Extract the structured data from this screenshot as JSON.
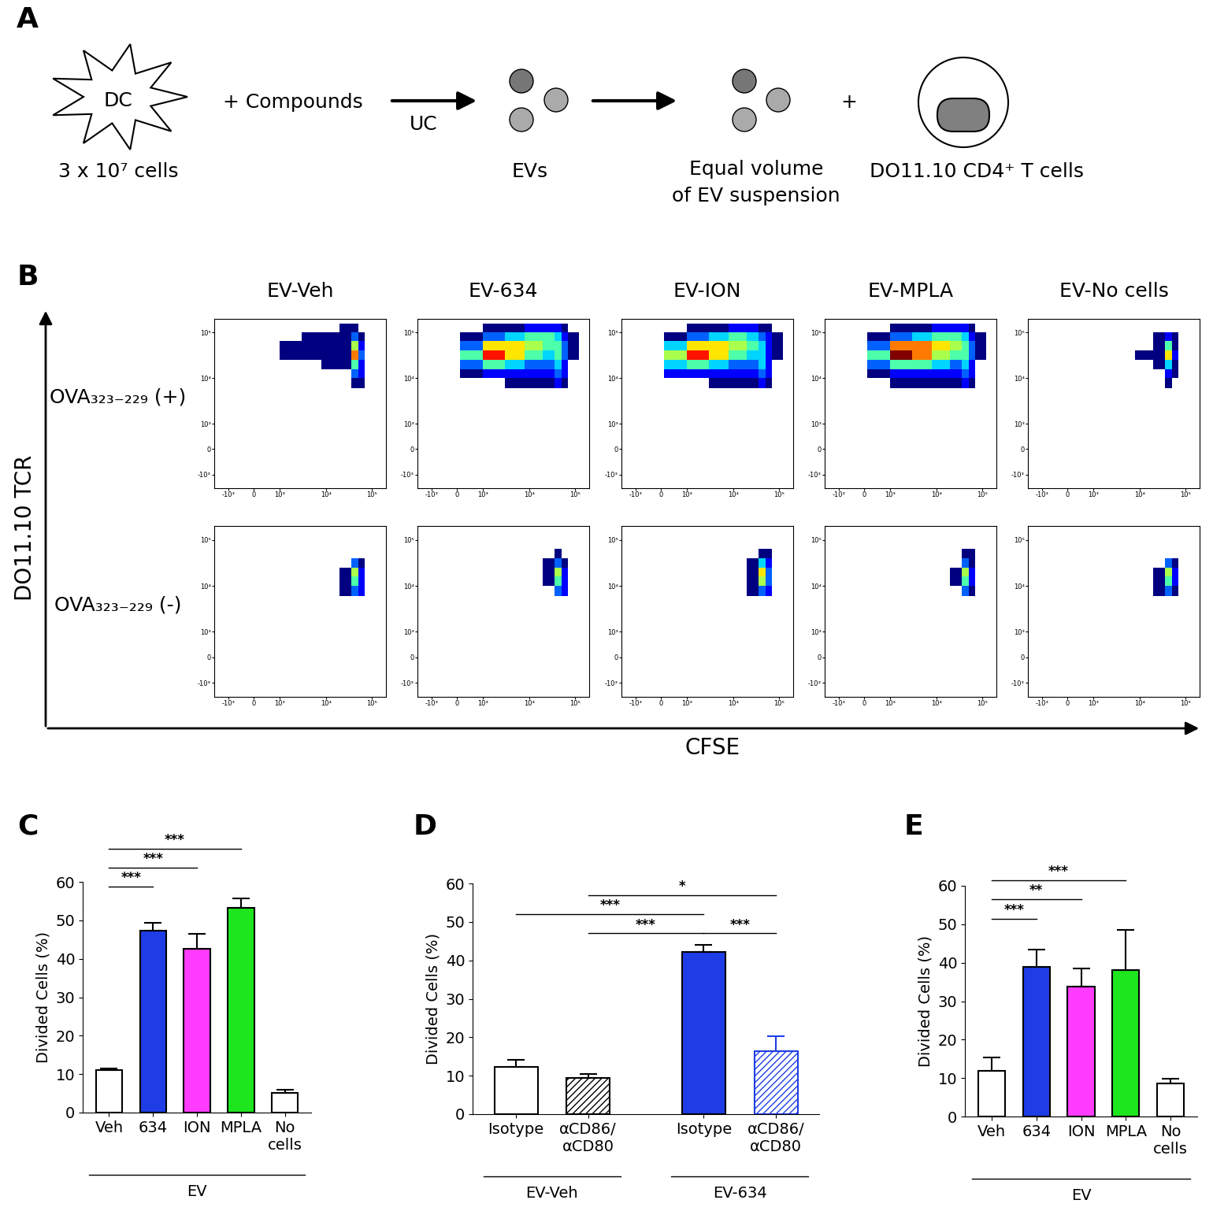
{
  "panel_labels": [
    "A",
    "B",
    "C",
    "D",
    "E"
  ],
  "diagram": {
    "cell": "DC",
    "cell_count": "3 x 10⁷ cells",
    "treatment": "+ Compounds",
    "step": "UC",
    "product": "EVs",
    "suspension": "Equal volume\nof EV suspension",
    "plus": "+",
    "target": "DO11.10 CD4⁺ T cells"
  },
  "flow": {
    "x_label": "CFSE",
    "y_label": "DO11.10 TCR",
    "columns": [
      "EV-Veh",
      "EV-634",
      "EV-ION",
      "EV-MPLA",
      "EV-No cells"
    ],
    "rows": [
      "OVA₃₂₃₋₂₂₉ (+)",
      "OVA₃₂₃₋₂₂₉ (-)"
    ],
    "xlim": [
      -2000,
      200000
    ],
    "ylim": [
      -2000,
      200000
    ],
    "xticks": [
      {
        "value": -1000,
        "label": "-10³"
      },
      0,
      {
        "value": 1000,
        "label": "10³"
      },
      {
        "value": 10000,
        "label": "10⁴"
      },
      {
        "value": 100000,
        "label": "10⁵"
      }
    ],
    "yticks": [
      {
        "value": -1000,
        "label": "-10³"
      },
      0,
      {
        "value": 1000,
        "label": "10³"
      },
      {
        "value": 10000,
        "label": "10⁴"
      },
      {
        "value": 100000,
        "label": "10⁵"
      }
    ],
    "x_edges": [
      100,
      1000,
      3000,
      8000,
      20000,
      35000,
      50000,
      70000,
      120000
    ],
    "y_edges": [
      6000,
      10000,
      16000,
      25000,
      40000,
      65000,
      100000,
      160000
    ],
    "cells": [
      [
        [
          [
            0,
            0,
            0,
            0,
            0,
            1,
            1,
            0
          ],
          [
            0,
            0,
            0,
            0,
            0,
            3,
            2,
            0
          ],
          [
            0,
            0,
            0,
            1,
            1,
            5,
            2,
            0
          ],
          [
            0,
            1,
            1,
            1,
            1,
            8,
            3,
            0
          ],
          [
            0,
            1,
            1,
            1,
            1,
            6,
            2,
            0
          ],
          [
            0,
            0,
            1,
            1,
            1,
            3,
            1,
            0
          ],
          [
            0,
            0,
            0,
            0,
            1,
            1,
            0,
            0
          ]
        ],
        [
          [
            0,
            0,
            1,
            1,
            1,
            2,
            1,
            0
          ],
          [
            1,
            2,
            2,
            2,
            2,
            3,
            2,
            0
          ],
          [
            3,
            5,
            4,
            3,
            3,
            4,
            2,
            0
          ],
          [
            5,
            9,
            7,
            5,
            4,
            5,
            3,
            1
          ],
          [
            3,
            7,
            7,
            6,
            5,
            5,
            3,
            1
          ],
          [
            1,
            3,
            4,
            5,
            5,
            4,
            2,
            1
          ],
          [
            0,
            1,
            1,
            2,
            2,
            2,
            1,
            0
          ]
        ],
        [
          [
            0,
            0,
            1,
            1,
            1,
            2,
            1,
            0
          ],
          [
            2,
            2,
            2,
            2,
            2,
            3,
            2,
            0
          ],
          [
            4,
            5,
            4,
            3,
            3,
            4,
            2,
            0
          ],
          [
            6,
            9,
            7,
            5,
            4,
            4,
            2,
            1
          ],
          [
            4,
            7,
            7,
            6,
            5,
            4,
            2,
            1
          ],
          [
            1,
            3,
            4,
            5,
            4,
            3,
            2,
            1
          ],
          [
            0,
            1,
            1,
            2,
            2,
            1,
            1,
            0
          ]
        ],
        [
          [
            0,
            1,
            1,
            1,
            1,
            2,
            1,
            0
          ],
          [
            1,
            2,
            2,
            2,
            2,
            3,
            2,
            0
          ],
          [
            3,
            5,
            5,
            4,
            3,
            4,
            2,
            0
          ],
          [
            5,
            10,
            8,
            6,
            5,
            5,
            3,
            1
          ],
          [
            3,
            8,
            8,
            7,
            6,
            5,
            3,
            1
          ],
          [
            1,
            3,
            4,
            5,
            5,
            4,
            2,
            1
          ],
          [
            0,
            1,
            1,
            2,
            2,
            2,
            1,
            0
          ]
        ],
        [
          [
            0,
            0,
            0,
            0,
            0,
            1,
            0,
            0
          ],
          [
            0,
            0,
            0,
            0,
            0,
            2,
            1,
            0
          ],
          [
            0,
            0,
            0,
            0,
            1,
            4,
            1,
            0
          ],
          [
            0,
            0,
            0,
            1,
            1,
            7,
            2,
            0
          ],
          [
            0,
            0,
            0,
            0,
            1,
            5,
            1,
            0
          ],
          [
            0,
            0,
            0,
            0,
            1,
            2,
            1,
            0
          ],
          [
            0,
            0,
            0,
            0,
            0,
            0,
            0,
            0
          ]
        ]
      ],
      [
        [
          [
            0,
            0,
            0,
            0,
            1,
            3,
            2,
            0
          ],
          [
            0,
            0,
            0,
            0,
            1,
            5,
            2,
            0
          ],
          [
            0,
            0,
            0,
            0,
            1,
            6,
            2,
            0
          ],
          [
            0,
            0,
            0,
            0,
            0,
            3,
            1,
            0
          ],
          [
            0,
            0,
            0,
            0,
            0,
            0,
            0,
            0
          ],
          [
            0,
            0,
            0,
            0,
            0,
            0,
            0,
            0
          ],
          [
            0,
            0,
            0,
            0,
            0,
            0,
            0,
            0
          ]
        ],
        [
          [
            0,
            0,
            0,
            0,
            0,
            3,
            2,
            0
          ],
          [
            0,
            0,
            0,
            0,
            1,
            5,
            2,
            0
          ],
          [
            0,
            0,
            0,
            0,
            1,
            6,
            2,
            0
          ],
          [
            0,
            0,
            0,
            0,
            1,
            3,
            1,
            0
          ],
          [
            0,
            0,
            0,
            0,
            0,
            1,
            0,
            0
          ],
          [
            0,
            0,
            0,
            0,
            0,
            0,
            0,
            0
          ],
          [
            0,
            0,
            0,
            0,
            0,
            0,
            0,
            0
          ]
        ],
        [
          [
            0,
            0,
            0,
            0,
            1,
            3,
            2,
            0
          ],
          [
            0,
            0,
            0,
            0,
            1,
            6,
            3,
            0
          ],
          [
            0,
            0,
            0,
            0,
            1,
            7,
            3,
            0
          ],
          [
            0,
            0,
            0,
            0,
            1,
            4,
            2,
            0
          ],
          [
            0,
            0,
            0,
            0,
            0,
            1,
            1,
            0
          ],
          [
            0,
            0,
            0,
            0,
            0,
            0,
            0,
            0
          ],
          [
            0,
            0,
            0,
            0,
            0,
            0,
            0,
            0
          ]
        ],
        [
          [
            0,
            0,
            0,
            0,
            0,
            3,
            1,
            0
          ],
          [
            0,
            0,
            0,
            0,
            1,
            5,
            2,
            0
          ],
          [
            0,
            0,
            0,
            0,
            1,
            6,
            2,
            0
          ],
          [
            0,
            0,
            0,
            0,
            0,
            3,
            1,
            0
          ],
          [
            0,
            0,
            0,
            0,
            0,
            1,
            1,
            0
          ],
          [
            0,
            0,
            0,
            0,
            0,
            0,
            0,
            0
          ],
          [
            0,
            0,
            0,
            0,
            0,
            0,
            0,
            0
          ]
        ],
        [
          [
            0,
            0,
            0,
            0,
            1,
            3,
            1,
            0
          ],
          [
            0,
            0,
            0,
            0,
            1,
            5,
            2,
            0
          ],
          [
            0,
            0,
            0,
            0,
            1,
            6,
            2,
            0
          ],
          [
            0,
            0,
            0,
            0,
            0,
            3,
            1,
            0
          ],
          [
            0,
            0,
            0,
            0,
            0,
            0,
            0,
            0
          ],
          [
            0,
            0,
            0,
            0,
            0,
            0,
            0,
            0
          ],
          [
            0,
            0,
            0,
            0,
            0,
            0,
            0,
            0
          ]
        ]
      ]
    ]
  },
  "chart_data": [
    {
      "type": "bar",
      "y_label": "Divided Cells (%)",
      "categories": [
        "Veh",
        "634",
        "ION",
        "MPLA",
        "No\ncells"
      ],
      "values": [
        11,
        47.3,
        42.5,
        53.2,
        5.2
      ],
      "errors": [
        0.5,
        2,
        4,
        2.5,
        0.7
      ],
      "colors": [
        "#ffffff",
        "#1f3de6",
        "#ff3cff",
        "#1ee61e",
        "#ffffff"
      ],
      "groups": [
        {
          "label": "EV",
          "members": [
            0,
            1,
            2,
            3,
            4
          ]
        }
      ],
      "significance": [
        {
          "from": 0,
          "to": 1,
          "label": "***"
        },
        {
          "from": 0,
          "to": 2,
          "label": "***"
        },
        {
          "from": 0,
          "to": 3,
          "label": "***"
        }
      ],
      "ylim": [
        0,
        60
      ],
      "yticks": [
        0,
        10,
        20,
        30,
        40,
        50,
        60
      ]
    },
    {
      "type": "bar",
      "y_label": "Divided Cells (%)",
      "categories": [
        "Isotype",
        "αCD86/\nαCD80",
        "Isotype",
        "αCD86/\nαCD80"
      ],
      "values": [
        12.3,
        9.4,
        42.2,
        16.3
      ],
      "errors": [
        1.8,
        1.1,
        1.8,
        3.9
      ],
      "colors": [
        "#ffffff",
        "#000000",
        "#1f3de6",
        "#1f3de6"
      ],
      "groups": [
        {
          "label": "EV-Veh",
          "members": [
            0,
            1
          ]
        },
        {
          "label": "EV-634",
          "members": [
            2,
            3
          ]
        }
      ],
      "significance": [
        {
          "from": 2,
          "to": 3,
          "label": "***"
        },
        {
          "from": 1,
          "to": 2,
          "label": "***"
        },
        {
          "from": 0,
          "to": 2,
          "label": "***"
        },
        {
          "from": 1,
          "to": 3,
          "label": "*"
        }
      ],
      "ylim": [
        0,
        60
      ],
      "yticks": [
        0,
        10,
        20,
        30,
        40,
        50,
        60
      ]
    },
    {
      "type": "bar",
      "y_label": "Divided Cells (%)",
      "categories": [
        "Veh",
        "634",
        "ION",
        "MPLA",
        "No\ncells"
      ],
      "values": [
        11.8,
        39,
        33.8,
        38,
        8.5
      ],
      "errors": [
        3.5,
        4.5,
        4.8,
        10.5,
        1.3
      ],
      "colors": [
        "#ffffff",
        "#1f3de6",
        "#ff3cff",
        "#1ee61e",
        "#ffffff"
      ],
      "groups": [
        {
          "label": "EV",
          "members": [
            0,
            1,
            2,
            3,
            4
          ]
        }
      ],
      "significance": [
        {
          "from": 0,
          "to": 1,
          "label": "***"
        },
        {
          "from": 0,
          "to": 2,
          "label": "**"
        },
        {
          "from": 0,
          "to": 3,
          "label": "***"
        }
      ],
      "ylim": [
        0,
        60
      ],
      "yticks": [
        0,
        10,
        20,
        30,
        40,
        50,
        60
      ]
    }
  ]
}
